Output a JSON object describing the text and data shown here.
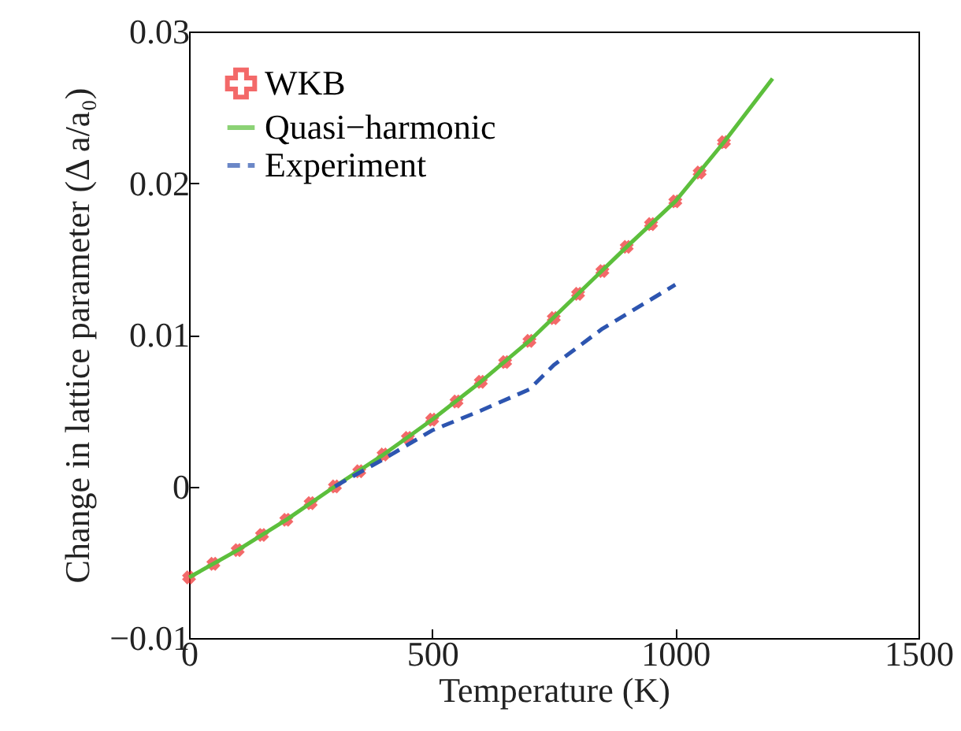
{
  "chart_data": {
    "type": "line",
    "xlabel": "Temperature (K)",
    "ylabel": "Change in lattice parameter (Δ a/a₀)",
    "xlim": [
      0,
      1500
    ],
    "xticks": [
      0,
      500,
      1000,
      1500
    ],
    "ylim": [
      -0.01,
      0.03
    ],
    "yticks": [
      -0.01,
      0,
      0.01,
      0.02,
      0.03
    ],
    "legend": "top left",
    "grid": false,
    "series": [
      {
        "name": "WKB",
        "type": "scatter",
        "marker": "cross",
        "color": "#ee2a2a",
        "x": [
          0,
          50,
          100,
          150,
          200,
          250,
          300,
          350,
          400,
          450,
          500,
          550,
          600,
          650,
          700,
          750,
          800,
          850,
          900,
          950,
          1000,
          1050,
          1100
        ],
        "values": [
          -0.006,
          -0.0051,
          -0.0042,
          -0.0032,
          -0.0022,
          -0.0011,
          0,
          0.001,
          0.0021,
          0.0032,
          0.0044,
          0.0056,
          0.0069,
          0.0082,
          0.0096,
          0.0111,
          0.0127,
          0.0142,
          0.0158,
          0.0173,
          0.0188,
          0.0207,
          0.0227
        ]
      },
      {
        "name": "Quasi−harmonic",
        "type": "line",
        "line_style": "solid",
        "color": "#5cbf3c",
        "x": [
          0,
          100,
          200,
          300,
          400,
          500,
          600,
          700,
          800,
          900,
          1000,
          1100,
          1200
        ],
        "values": [
          -0.006,
          -0.0042,
          -0.0022,
          0,
          0.0021,
          0.0044,
          0.0069,
          0.0096,
          0.0127,
          0.0158,
          0.0188,
          0.0227,
          0.0269
        ]
      },
      {
        "name": "Experiment",
        "type": "line",
        "line_style": "dashed",
        "color": "#2d55b0",
        "x": [
          300,
          400,
          500,
          600,
          700,
          750,
          850,
          1000
        ],
        "values": [
          0,
          0.0018,
          0.0037,
          0.005,
          0.0064,
          0.008,
          0.0104,
          0.0133
        ]
      }
    ]
  }
}
